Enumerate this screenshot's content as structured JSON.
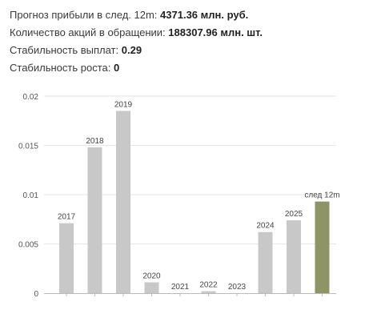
{
  "stats": {
    "profit_forecast_label": "Прогноз прибыли в след. 12m:",
    "profit_forecast_value": "4371.36 млн. руб.",
    "shares_label": "Количество акций в обращении:",
    "shares_value": "188307.96 млн. шт.",
    "payout_stability_label": "Стабильность выплат:",
    "payout_stability_value": "0.29",
    "growth_stability_label": "Стабильность роста:",
    "growth_stability_value": "0"
  },
  "chart_data": {
    "type": "bar",
    "categories": [
      "2017",
      "2018",
      "2019",
      "2020",
      "2021",
      "2022",
      "2023",
      "2024",
      "2025",
      "след 12m"
    ],
    "values": [
      0.0071,
      0.0148,
      0.0185,
      0.0011,
      0.0,
      0.0002,
      0.0,
      0.0062,
      0.0074,
      0.0093
    ],
    "title": "",
    "xlabel": "",
    "ylabel": "",
    "ylim": [
      0,
      0.02
    ],
    "yticks": [
      "0",
      "0.005",
      "0.01",
      "0.015",
      "0.02"
    ],
    "grid": true,
    "colors": {
      "bar": "#c8c8c8",
      "highlight": "#8f9466",
      "grid": "#e6e6e6",
      "axis": "#bbbbbb"
    },
    "highlight_category": "след 12m"
  }
}
